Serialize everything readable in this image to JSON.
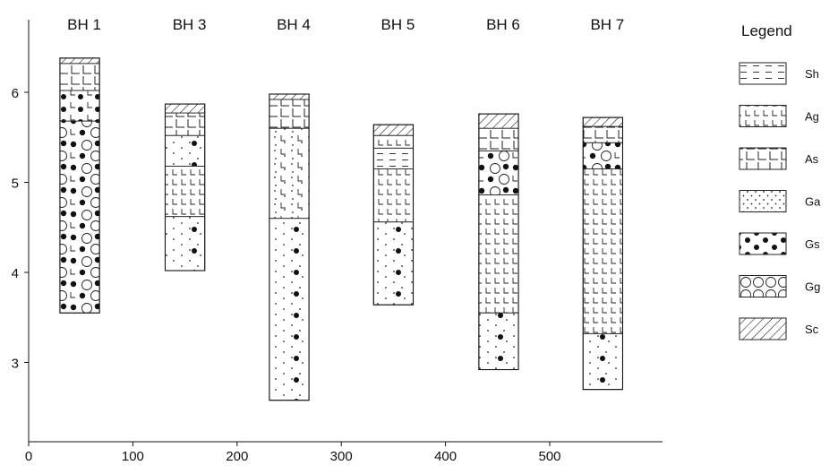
{
  "axes": {
    "x_ticks": [
      0,
      100,
      200,
      300,
      400,
      500
    ],
    "y_ticks": [
      3,
      4,
      5,
      6
    ]
  },
  "legend": {
    "title": "Legend",
    "items": [
      {
        "code": "Sh",
        "pattern": "dashes"
      },
      {
        "code": "Ag",
        "pattern": "small-l"
      },
      {
        "code": "As",
        "pattern": "large-l"
      },
      {
        "code": "Ga",
        "pattern": "small-dots"
      },
      {
        "code": "Gs",
        "pattern": "big-dots"
      },
      {
        "code": "Gg",
        "pattern": "circles"
      },
      {
        "code": "Sc",
        "pattern": "hatch"
      }
    ]
  },
  "boreholes": [
    {
      "label": "BH 1",
      "x": [
        30,
        68
      ],
      "layers": [
        {
          "code": "Sc",
          "top": 6.38,
          "bottom": 6.32
        },
        {
          "code": "As",
          "top": 6.32,
          "bottom": 6.02
        },
        {
          "code": "Ag+Gs",
          "top": 6.02,
          "bottom": 5.68
        },
        {
          "code": "Gs+Gg+Ag",
          "top": 5.68,
          "bottom": 3.55
        }
      ]
    },
    {
      "label": "BH 3",
      "x": [
        131,
        169
      ],
      "layers": [
        {
          "code": "Sc",
          "top": 5.87,
          "bottom": 5.77
        },
        {
          "code": "As",
          "top": 5.77,
          "bottom": 5.52
        },
        {
          "code": "Ga+Gs",
          "top": 5.52,
          "bottom": 5.18
        },
        {
          "code": "Ag",
          "top": 5.18,
          "bottom": 4.62
        },
        {
          "code": "Ga+Gs",
          "top": 4.62,
          "bottom": 4.02
        }
      ]
    },
    {
      "label": "BH 4",
      "x": [
        231,
        269
      ],
      "layers": [
        {
          "code": "Sc",
          "top": 5.98,
          "bottom": 5.92
        },
        {
          "code": "As",
          "top": 5.92,
          "bottom": 5.6
        },
        {
          "code": "Ga+Ag",
          "top": 5.6,
          "bottom": 4.6
        },
        {
          "code": "Ga+Gs",
          "top": 4.6,
          "bottom": 2.58
        }
      ]
    },
    {
      "label": "BH 5",
      "x": [
        331,
        369
      ],
      "layers": [
        {
          "code": "Sc",
          "top": 5.64,
          "bottom": 5.52
        },
        {
          "code": "Ag",
          "top": 5.52,
          "bottom": 5.38
        },
        {
          "code": "Sh",
          "top": 5.38,
          "bottom": 5.15
        },
        {
          "code": "Ag",
          "top": 5.15,
          "bottom": 4.56
        },
        {
          "code": "Ga+Gs",
          "top": 4.56,
          "bottom": 3.64
        }
      ]
    },
    {
      "label": "BH 6",
      "x": [
        432,
        470
      ],
      "layers": [
        {
          "code": "Sc",
          "top": 5.76,
          "bottom": 5.6
        },
        {
          "code": "As",
          "top": 5.6,
          "bottom": 5.35
        },
        {
          "code": "Ga+Gs+Gg",
          "top": 5.35,
          "bottom": 4.86
        },
        {
          "code": "Ag",
          "top": 4.86,
          "bottom": 3.55
        },
        {
          "code": "Ga+Gs",
          "top": 3.55,
          "bottom": 2.92
        }
      ]
    },
    {
      "label": "BH 7",
      "x": [
        532,
        570
      ],
      "layers": [
        {
          "code": "Sc",
          "top": 5.72,
          "bottom": 5.62
        },
        {
          "code": "As",
          "top": 5.62,
          "bottom": 5.44
        },
        {
          "code": "Ga+Gs+Gg",
          "top": 5.44,
          "bottom": 5.15
        },
        {
          "code": "Ag",
          "top": 5.15,
          "bottom": 3.32
        },
        {
          "code": "Ga+Gs",
          "top": 3.32,
          "bottom": 2.7
        }
      ]
    }
  ]
}
